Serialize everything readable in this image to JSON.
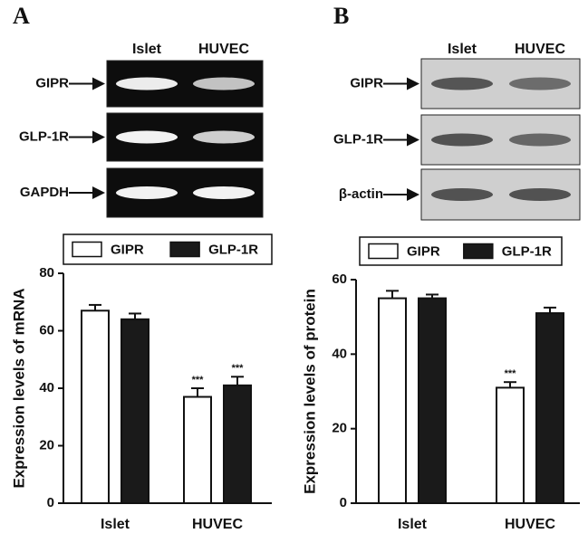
{
  "chart_data": [
    {
      "type": "bar",
      "panel": "A",
      "blot": {
        "columns": [
          "Islet",
          "HUVEC"
        ],
        "rows": [
          "GIPR",
          "GLP-1R",
          "GAPDH"
        ]
      },
      "ylabel": "Expression levels of mRNA",
      "categories": [
        "Islet",
        "HUVEC"
      ],
      "series": [
        {
          "name": "GIPR",
          "color": "#ffffff",
          "values": [
            67,
            37
          ],
          "errors": [
            2,
            3
          ],
          "annotations": [
            null,
            "***"
          ]
        },
        {
          "name": "GLP-1R",
          "color": "#1a1a1a",
          "values": [
            64,
            41
          ],
          "errors": [
            2,
            3
          ],
          "annotations": [
            null,
            "***"
          ]
        }
      ],
      "ylim": [
        0,
        80
      ],
      "yticks": [
        0,
        20,
        40,
        60,
        80
      ],
      "legend": "top"
    },
    {
      "type": "bar",
      "panel": "B",
      "blot": {
        "columns": [
          "Islet",
          "HUVEC"
        ],
        "rows": [
          "GIPR",
          "GLP-1R",
          "β-actin"
        ]
      },
      "ylabel": "Expression levels of protein",
      "categories": [
        "Islet",
        "HUVEC"
      ],
      "series": [
        {
          "name": "GIPR",
          "color": "#ffffff",
          "values": [
            55,
            31
          ],
          "errors": [
            2,
            1.5
          ],
          "annotations": [
            null,
            "***"
          ]
        },
        {
          "name": "GLP-1R",
          "color": "#1a1a1a",
          "values": [
            55,
            51
          ],
          "errors": [
            1,
            1.5
          ],
          "annotations": [
            null,
            null
          ]
        }
      ],
      "ylim": [
        0,
        60
      ],
      "yticks": [
        0,
        20,
        40,
        60
      ],
      "legend": "top"
    }
  ]
}
